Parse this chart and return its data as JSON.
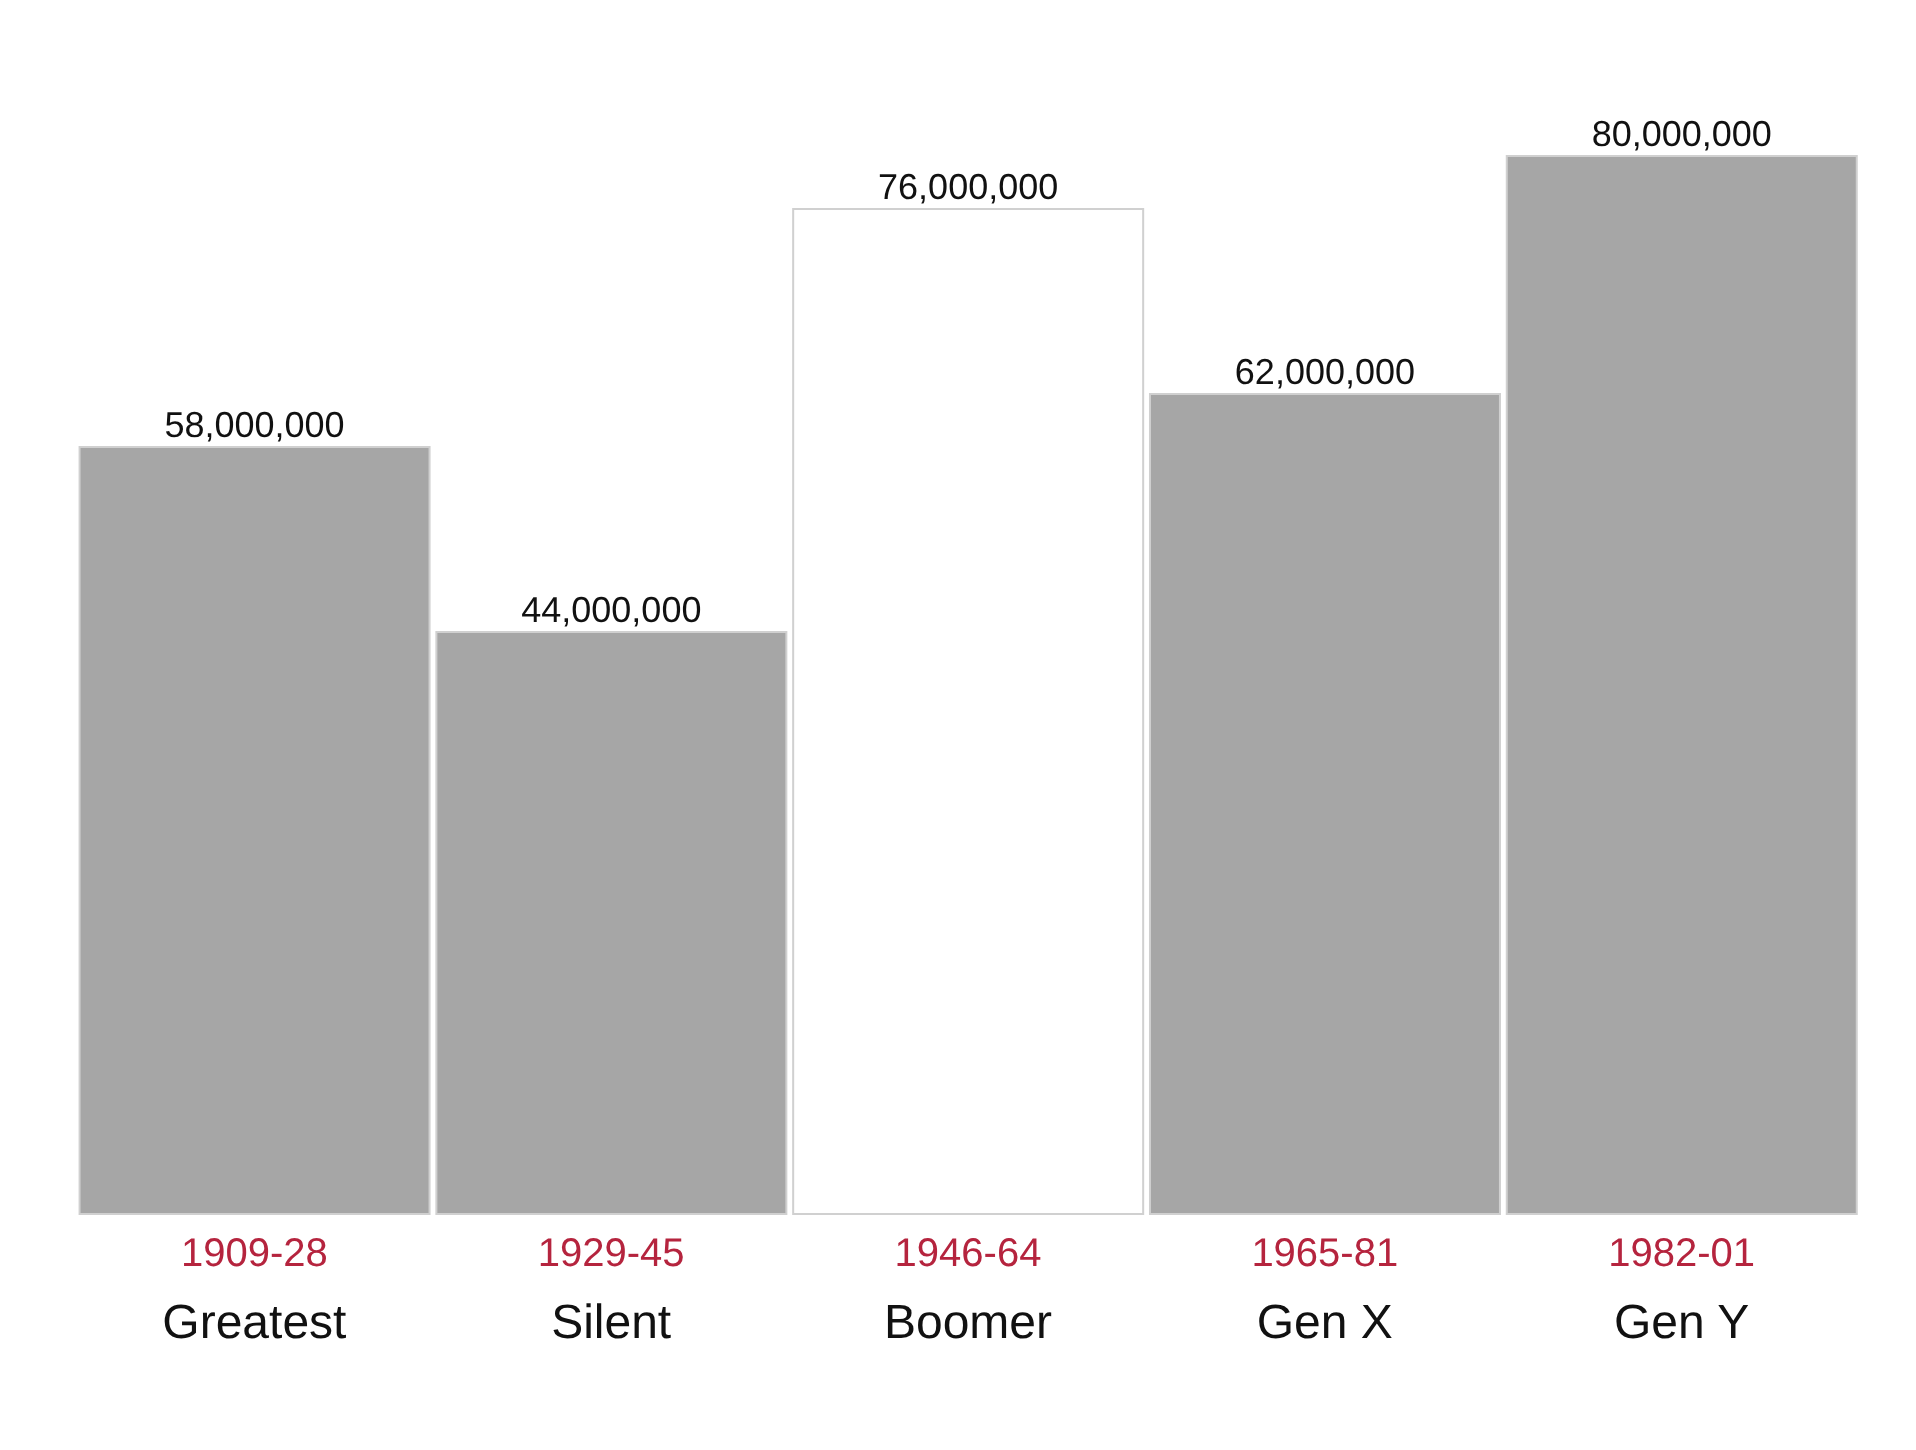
{
  "chart_data": {
    "type": "bar",
    "categories": [
      "1909-28\nGreatest",
      "1929-45\nSilent",
      "1946-64\nBoomer",
      "1965-81\nGen X",
      "1982-01\nGen Y"
    ],
    "values": [
      58000000,
      44000000,
      76000000,
      62000000,
      80000000
    ],
    "colors": [
      "#a6a6a6",
      "#a6a6a6",
      "#ffffff",
      "#a6a6a6",
      "#a6a6a6"
    ],
    "value_labels": [
      "58,000,000",
      "44,000,000",
      "76,000,000",
      "62,000,000",
      "80,000,000"
    ],
    "tick_labels": "x",
    "grid": false,
    "legend": false
  }
}
